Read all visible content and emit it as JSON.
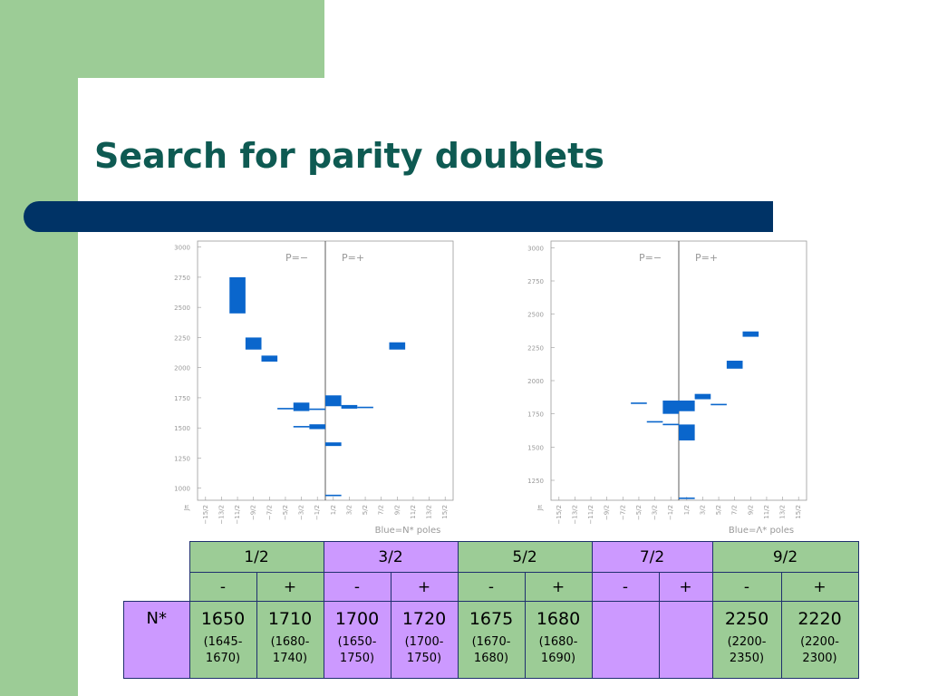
{
  "title": "Search for parity doublets",
  "plots": [
    {
      "parity_minus": "P=−",
      "parity_plus": "P=+",
      "y_ticks": [
        "3000",
        "2750",
        "2500",
        "2250",
        "2000",
        "1750",
        "1500",
        "1250",
        "1000"
      ],
      "x_ticks": [
        "−15/2",
        "−13/2",
        "−11/2",
        "−9/2",
        "−7/2",
        "−5/2",
        "−3/2",
        "−1/2",
        "1/2",
        "3/2",
        "5/2",
        "7/2",
        "9/2",
        "11/2",
        "13/2",
        "15/2"
      ],
      "x_axis_label": " Jπ",
      "caption": "Blue=N* poles",
      "y_range": [
        900,
        3050
      ],
      "color": "#0a66cc",
      "boxes": [
        {
          "x": -5.5,
          "y0": 2450,
          "y1": 2750
        },
        {
          "x": -4.5,
          "y0": 2150,
          "y1": 2250
        },
        {
          "x": -3.5,
          "y0": 2050,
          "y1": 2100
        },
        {
          "x": -1.5,
          "y0": 1640,
          "y1": 1710
        },
        {
          "x": -0.5,
          "y0": 1490,
          "y1": 1530
        },
        {
          "x": 0.5,
          "y0": 1680,
          "y1": 1770
        },
        {
          "x": 0.5,
          "y0": 1350,
          "y1": 1380
        },
        {
          "x": 1.5,
          "y0": 1660,
          "y1": 1690
        },
        {
          "x": 4.5,
          "y0": 2150,
          "y1": 2210
        }
      ],
      "lines": [
        {
          "x": -2.5,
          "y": 1660
        },
        {
          "x": -1.5,
          "y": 1510
        },
        {
          "x": -0.5,
          "y": 1655
        },
        {
          "x": 2.5,
          "y": 1670
        },
        {
          "x": 0.5,
          "y": 940
        }
      ]
    },
    {
      "parity_minus": "P=−",
      "parity_plus": "P=+",
      "y_ticks": [
        "3000",
        "2750",
        "2500",
        "2250",
        "2000",
        "1750",
        "1500",
        "1250"
      ],
      "x_ticks": [
        "−15/2",
        "−13/2",
        "−11/2",
        "−9/2",
        "−7/2",
        "−5/2",
        "−3/2",
        "−1/2",
        "1/2",
        "3/2",
        "5/2",
        "7/2",
        "9/2",
        "11/2",
        "13/2",
        "15/2"
      ],
      "x_axis_label": " Jπ",
      "caption": "Blue=Λ* poles",
      "y_range": [
        1100,
        3050
      ],
      "color": "#0a66cc",
      "boxes": [
        {
          "x": -0.5,
          "y0": 1750,
          "y1": 1850
        },
        {
          "x": 0.5,
          "y0": 1550,
          "y1": 1670
        },
        {
          "x": 0.5,
          "y0": 1770,
          "y1": 1850
        },
        {
          "x": 1.5,
          "y0": 1860,
          "y1": 1900
        },
        {
          "x": 3.5,
          "y0": 2090,
          "y1": 2150
        },
        {
          "x": 4.5,
          "y0": 2330,
          "y1": 2370
        }
      ],
      "lines": [
        {
          "x": -2.5,
          "y": 1830
        },
        {
          "x": -1.5,
          "y": 1690
        },
        {
          "x": -0.5,
          "y": 1670
        },
        {
          "x": 2.5,
          "y": 1820
        },
        {
          "x": 0.5,
          "y": 1115
        }
      ]
    }
  ],
  "table": {
    "spins": [
      "1/2",
      "3/2",
      "5/2",
      "7/2",
      "9/2"
    ],
    "parities": [
      "-",
      "+",
      "-",
      "+",
      "-",
      "+",
      "-",
      "+",
      "-",
      "+"
    ],
    "row_label": "N*",
    "masses": [
      "1650",
      "1710",
      "1700",
      "1720",
      "1675",
      "1680",
      "",
      "",
      "2250",
      "2220"
    ],
    "ranges_a": [
      "(1645-",
      "(1680-",
      "(1650-",
      "(1700-",
      "(1670-",
      "(1680-",
      "",
      "",
      "(2200-",
      "(2200-"
    ],
    "ranges_b": [
      "1670)",
      "1740)",
      "1750)",
      "1750)",
      "1680)",
      "1690)",
      "",
      "",
      "2350)",
      "2300)"
    ]
  },
  "colors": {
    "green": "#9ccc96",
    "purple": "#cc99ff",
    "navy": "#003366",
    "title": "#0e5a52"
  }
}
